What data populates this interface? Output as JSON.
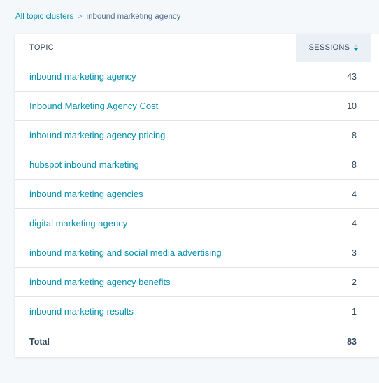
{
  "breadcrumb": {
    "root": "All topic clusters",
    "separator": ">",
    "current": "inbound marketing agency"
  },
  "table": {
    "headers": {
      "topic": "TOPIC",
      "sessions": "SESSIONS"
    },
    "sort": {
      "column": "sessions",
      "direction": "descending",
      "icon": "sort-arrows-icon"
    },
    "rows": [
      {
        "topic": "inbound marketing agency",
        "sessions": "43"
      },
      {
        "topic": "Inbound Marketing Agency Cost",
        "sessions": "10"
      },
      {
        "topic": "inbound marketing agency pricing",
        "sessions": "8"
      },
      {
        "topic": "hubspot inbound marketing",
        "sessions": "8"
      },
      {
        "topic": "inbound marketing agencies",
        "sessions": "4"
      },
      {
        "topic": "digital marketing agency",
        "sessions": "4"
      },
      {
        "topic": "inbound marketing and social media advertising",
        "sessions": "3"
      },
      {
        "topic": "inbound marketing agency benefits",
        "sessions": "2"
      },
      {
        "topic": "inbound marketing results",
        "sessions": "1"
      }
    ],
    "total": {
      "label": "Total",
      "sessions": "83"
    }
  },
  "colors": {
    "link": "#0091ae",
    "text": "#33475b",
    "background": "#f5f8fa",
    "header_highlight": "#eaf0f6",
    "border": "#dfe3eb"
  }
}
